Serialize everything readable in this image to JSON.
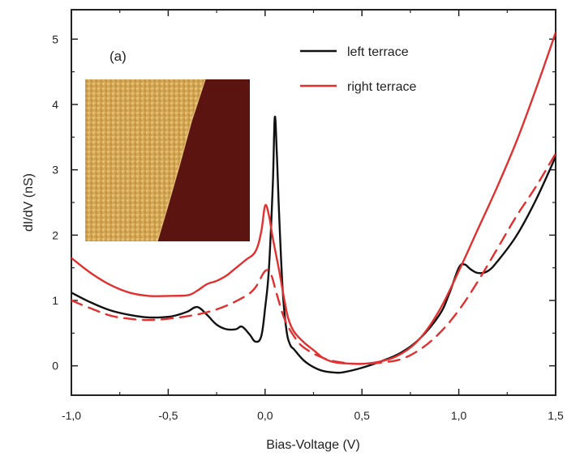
{
  "chart_data": {
    "type": "line",
    "panel_label": "(a)",
    "xlabel": "Bias-Voltage (V)",
    "ylabel": "dI/dV (nS)",
    "xlim": [
      -1.0,
      1.5
    ],
    "ylim": [
      -0.45,
      5.45
    ],
    "x_ticks": [
      -1.0,
      -0.5,
      0.0,
      0.5,
      1.0,
      1.5
    ],
    "x_tick_labels": [
      "-1,0",
      "-0,5",
      "0,0",
      "0,5",
      "1,0",
      "1,5"
    ],
    "y_ticks": [
      0,
      1,
      2,
      3,
      4,
      5
    ],
    "y_tick_labels": [
      "0",
      "1",
      "2",
      "3",
      "4",
      "5"
    ],
    "grid": false,
    "legend_position": "top-right",
    "inset": "STM topography image of a step edge between two terraces (light left terrace, dark right terrace)",
    "series": [
      {
        "name": "left terrace",
        "color": "#111111",
        "style": "solid",
        "x": [
          -1.0,
          -0.9,
          -0.8,
          -0.7,
          -0.6,
          -0.5,
          -0.45,
          -0.4,
          -0.35,
          -0.3,
          -0.25,
          -0.2,
          -0.15,
          -0.12,
          -0.08,
          -0.05,
          -0.02,
          0.0,
          0.02,
          0.04,
          0.05,
          0.06,
          0.07,
          0.09,
          0.11,
          0.13,
          0.15,
          0.2,
          0.25,
          0.3,
          0.35,
          0.4,
          0.5,
          0.6,
          0.7,
          0.8,
          0.9,
          0.95,
          1.0,
          1.03,
          1.06,
          1.1,
          1.15,
          1.2,
          1.3,
          1.4,
          1.5
        ],
        "y": [
          1.12,
          0.97,
          0.85,
          0.78,
          0.74,
          0.75,
          0.78,
          0.83,
          0.9,
          0.78,
          0.63,
          0.56,
          0.56,
          0.6,
          0.48,
          0.37,
          0.45,
          0.88,
          1.5,
          2.8,
          3.8,
          3.3,
          2.5,
          1.2,
          0.55,
          0.32,
          0.25,
          0.08,
          -0.02,
          -0.08,
          -0.1,
          -0.1,
          -0.03,
          0.07,
          0.2,
          0.42,
          0.78,
          1.1,
          1.5,
          1.55,
          1.48,
          1.42,
          1.45,
          1.6,
          2.0,
          2.55,
          3.2
        ]
      },
      {
        "name": "right terrace",
        "color": "#e03030",
        "style": "solid",
        "x": [
          -1.0,
          -0.9,
          -0.8,
          -0.7,
          -0.6,
          -0.5,
          -0.4,
          -0.35,
          -0.3,
          -0.25,
          -0.2,
          -0.15,
          -0.1,
          -0.05,
          -0.02,
          0.0,
          0.02,
          0.04,
          0.07,
          0.1,
          0.12,
          0.15,
          0.2,
          0.25,
          0.3,
          0.35,
          0.4,
          0.5,
          0.6,
          0.7,
          0.8,
          0.9,
          1.0,
          1.1,
          1.2,
          1.3,
          1.4,
          1.5
        ],
        "y": [
          1.65,
          1.42,
          1.24,
          1.12,
          1.07,
          1.07,
          1.08,
          1.15,
          1.25,
          1.3,
          1.38,
          1.5,
          1.62,
          1.75,
          2.05,
          2.45,
          2.3,
          1.95,
          1.5,
          1.0,
          0.72,
          0.52,
          0.36,
          0.24,
          0.12,
          0.06,
          0.04,
          0.03,
          0.07,
          0.18,
          0.42,
          0.85,
          1.45,
          2.1,
          2.75,
          3.45,
          4.25,
          5.1
        ]
      },
      {
        "color": "#e03030",
        "style": "dashed",
        "x": [
          -1.0,
          -0.9,
          -0.8,
          -0.7,
          -0.6,
          -0.5,
          -0.4,
          -0.3,
          -0.2,
          -0.1,
          -0.05,
          0.0,
          0.03,
          0.06,
          0.1,
          0.15,
          0.2,
          0.3,
          0.4,
          0.5,
          0.6,
          0.7,
          0.8,
          0.9,
          1.0,
          1.1,
          1.2,
          1.3,
          1.4,
          1.5
        ],
        "y": [
          1.0,
          0.88,
          0.77,
          0.72,
          0.7,
          0.72,
          0.76,
          0.82,
          0.92,
          1.07,
          1.2,
          1.45,
          1.4,
          1.1,
          0.72,
          0.45,
          0.28,
          0.12,
          0.05,
          0.03,
          0.05,
          0.1,
          0.25,
          0.5,
          0.85,
          1.3,
          1.8,
          2.3,
          2.75,
          3.25
        ]
      }
    ]
  }
}
